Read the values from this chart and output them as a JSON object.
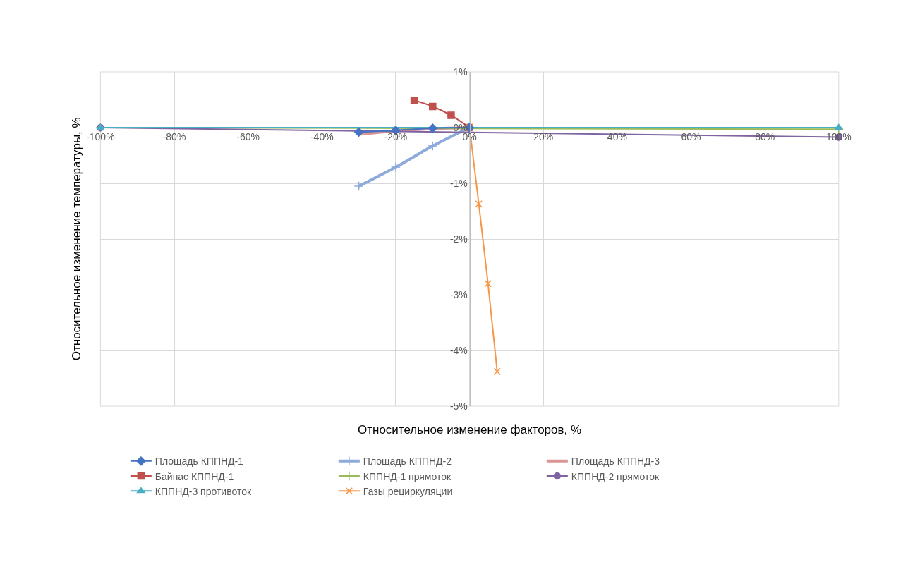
{
  "chart_data": {
    "type": "line",
    "xlabel": "Относительное изменение факторов, %",
    "ylabel": "Относительное изменение температуры, %",
    "xlim": [
      -100,
      100
    ],
    "xticks": [
      {
        "value": -100,
        "label": "-100%"
      },
      {
        "value": -80,
        "label": "-80%"
      },
      {
        "value": -60,
        "label": "-60%"
      },
      {
        "value": -40,
        "label": "-40%"
      },
      {
        "value": -20,
        "label": "-20%"
      },
      {
        "value": 0,
        "label": "0%"
      },
      {
        "value": 20,
        "label": "20%"
      },
      {
        "value": 40,
        "label": "40%"
      },
      {
        "value": 60,
        "label": "60%"
      },
      {
        "value": 80,
        "label": "80%"
      },
      {
        "value": 100,
        "label": "100%"
      }
    ],
    "ylim": [
      -5,
      1
    ],
    "yticks": [
      {
        "value": -5,
        "label": "-5%"
      },
      {
        "value": -4,
        "label": "-4%"
      },
      {
        "value": -3,
        "label": "-3%"
      },
      {
        "value": -2,
        "label": "-2%"
      },
      {
        "value": -1,
        "label": "-1%"
      },
      {
        "value": 0,
        "label": "0%"
      },
      {
        "value": 1,
        "label": "1%"
      }
    ],
    "grid": true,
    "legend": "bottom",
    "series": [
      {
        "name": "Площадь КППНД-1",
        "color": "#4472c4",
        "marker": "diamond",
        "x": [
          -30,
          -20,
          -10,
          0
        ],
        "values": [
          -0.08,
          -0.05,
          -0.01,
          0
        ]
      },
      {
        "name": "Площадь КППНД-2",
        "color": "#8eaadb",
        "marker": "cross",
        "x": [
          -30,
          -20,
          -10,
          0
        ],
        "values": [
          -1.05,
          -0.71,
          -0.33,
          0
        ]
      },
      {
        "name": "Площадь КППНД-3",
        "color": "#d99694",
        "marker": "none",
        "x": [
          -30,
          -20,
          -10,
          0
        ],
        "values": [
          -0.12,
          -0.06,
          -0.02,
          0
        ]
      },
      {
        "name": "Байпас КППНД-1",
        "color": "#c0504d",
        "marker": "square",
        "x": [
          -15,
          -10,
          -5,
          0
        ],
        "values": [
          0.49,
          0.38,
          0.22,
          0
        ]
      },
      {
        "name": "КППНД-1 прямоток",
        "color": "#9bbb59",
        "marker": "cross",
        "x": [
          -100,
          100
        ],
        "values": [
          0,
          -0.03
        ]
      },
      {
        "name": "КППНД-2 прямоток",
        "color": "#8064a2",
        "marker": "circle",
        "x": [
          -100,
          100
        ],
        "values": [
          0,
          -0.17
        ]
      },
      {
        "name": "КППНД-3 противоток",
        "color": "#4bacc6",
        "marker": "triangle",
        "x": [
          -100,
          100
        ],
        "values": [
          0,
          0
        ]
      },
      {
        "name": "Газы рециркуляции",
        "color": "#f79646",
        "marker": "x",
        "x": [
          0,
          2.5,
          5,
          7.5
        ],
        "values": [
          0,
          -1.37,
          -2.8,
          -4.38
        ]
      }
    ]
  }
}
